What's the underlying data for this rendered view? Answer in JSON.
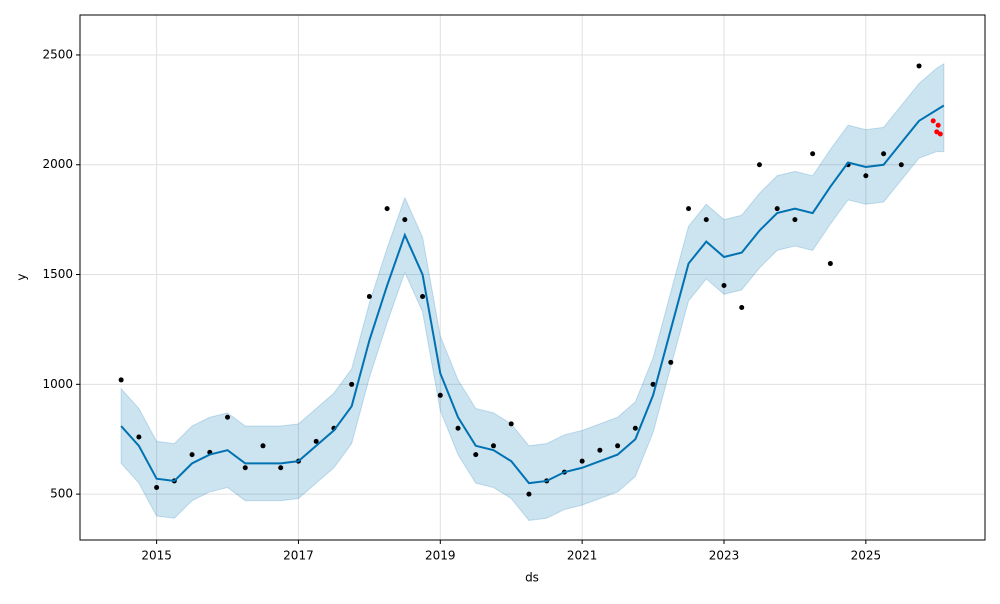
{
  "chart_data": {
    "type": "line",
    "xlabel": "ds",
    "ylabel": "y",
    "xlim": [
      2013.92,
      2026.68
    ],
    "ylim": [
      291,
      2682
    ],
    "xticks": [
      2015,
      2017,
      2019,
      2021,
      2023,
      2025
    ],
    "yticks": [
      500,
      1000,
      1500,
      2000,
      2500
    ],
    "grid": true,
    "forecast": {
      "color": "#0072b2",
      "band_color": "#0072b2",
      "x": [
        2014.5,
        2014.75,
        2015.0,
        2015.25,
        2015.5,
        2015.75,
        2016.0,
        2016.25,
        2016.5,
        2016.75,
        2017.0,
        2017.25,
        2017.5,
        2017.75,
        2018.0,
        2018.25,
        2018.5,
        2018.75,
        2019.0,
        2019.25,
        2019.5,
        2019.75,
        2020.0,
        2020.25,
        2020.5,
        2020.75,
        2021.0,
        2021.25,
        2021.5,
        2021.75,
        2022.0,
        2022.25,
        2022.5,
        2022.75,
        2023.0,
        2023.25,
        2023.5,
        2023.75,
        2024.0,
        2024.25,
        2024.5,
        2024.75,
        2025.0,
        2025.25,
        2025.5,
        2025.75,
        2026.0,
        2026.1
      ],
      "values": [
        810,
        720,
        570,
        560,
        640,
        680,
        700,
        640,
        640,
        640,
        650,
        720,
        790,
        900,
        1200,
        1450,
        1680,
        1500,
        1050,
        850,
        720,
        700,
        650,
        550,
        560,
        600,
        620,
        650,
        680,
        750,
        950,
        1250,
        1550,
        1650,
        1580,
        1600,
        1700,
        1780,
        1800,
        1780,
        1900,
        2010,
        1990,
        2000,
        2100,
        2200,
        2250,
        2270
      ],
      "lower": [
        640,
        550,
        400,
        390,
        470,
        510,
        530,
        470,
        470,
        470,
        480,
        550,
        620,
        730,
        1030,
        1280,
        1510,
        1330,
        880,
        680,
        550,
        530,
        480,
        380,
        390,
        430,
        450,
        480,
        510,
        580,
        780,
        1080,
        1380,
        1480,
        1410,
        1430,
        1530,
        1610,
        1630,
        1610,
        1730,
        1840,
        1820,
        1830,
        1930,
        2030,
        2060,
        2060
      ],
      "upper": [
        980,
        890,
        740,
        730,
        810,
        850,
        870,
        810,
        810,
        810,
        820,
        890,
        960,
        1070,
        1370,
        1620,
        1850,
        1670,
        1220,
        1020,
        890,
        870,
        820,
        720,
        730,
        770,
        790,
        820,
        850,
        920,
        1120,
        1420,
        1720,
        1820,
        1750,
        1770,
        1870,
        1950,
        1970,
        1950,
        2070,
        2180,
        2160,
        2170,
        2270,
        2370,
        2440,
        2460
      ]
    },
    "points": [
      {
        "color": "#000000",
        "x": [
          2014.5,
          2014.75,
          2015.0,
          2015.25,
          2015.5,
          2015.75,
          2016.0,
          2016.25,
          2016.5,
          2016.75,
          2017.0,
          2017.25,
          2017.5,
          2017.75,
          2018.0,
          2018.25,
          2018.5,
          2018.75,
          2019.0,
          2019.25,
          2019.5,
          2019.75,
          2020.0,
          2020.25,
          2020.5,
          2020.75,
          2021.0,
          2021.25,
          2021.5,
          2021.75,
          2022.0,
          2022.25,
          2022.5,
          2022.75,
          2023.0,
          2023.25,
          2023.5,
          2023.75,
          2024.0,
          2024.25,
          2024.5,
          2024.75,
          2025.0,
          2025.25,
          2025.5,
          2025.75
        ],
        "values": [
          1020,
          760,
          530,
          560,
          680,
          690,
          850,
          620,
          720,
          620,
          650,
          740,
          800,
          1000,
          1400,
          1800,
          1750,
          1400,
          950,
          800,
          680,
          720,
          820,
          500,
          560,
          600,
          650,
          700,
          720,
          800,
          1000,
          1100,
          1800,
          1750,
          1450,
          1350,
          2000,
          1800,
          1750,
          2050,
          1550,
          2000,
          1950,
          2050,
          2000,
          2450
        ]
      },
      {
        "color": "#ff0000",
        "x": [
          2025.95,
          2026.0,
          2026.02,
          2026.05
        ],
        "values": [
          2200,
          2150,
          2180,
          2140
        ]
      }
    ]
  }
}
